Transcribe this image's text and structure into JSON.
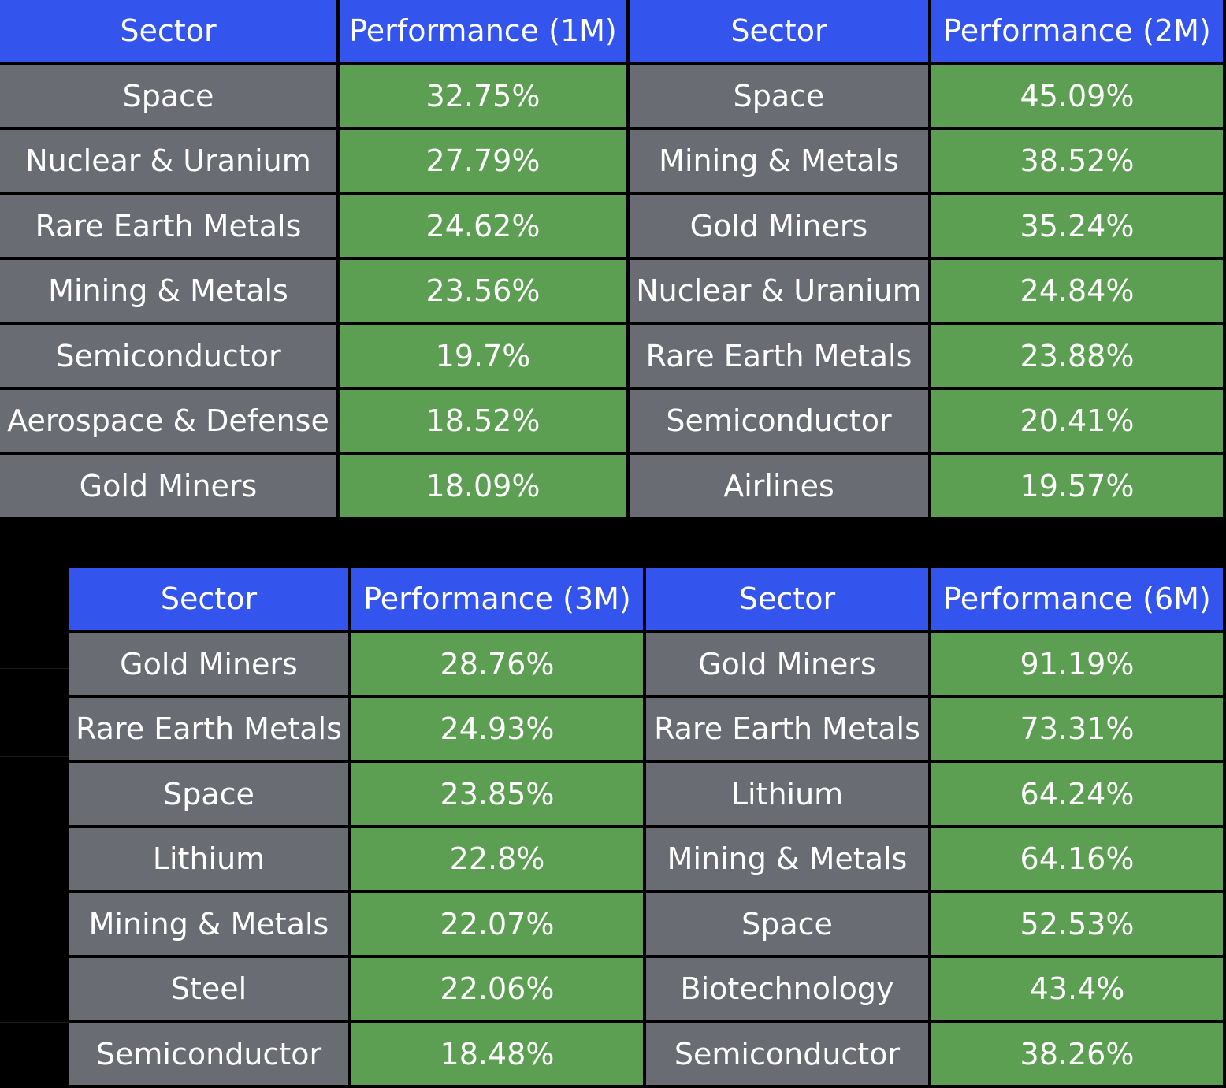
{
  "colors": {
    "header_blue": "#3355ee",
    "sector_gray": "#6a6c74",
    "performance_green": "#5c9f53",
    "background": "#000000"
  },
  "tables": {
    "m1": {
      "sector_header": "Sector",
      "perf_header": "Performance (1M)",
      "rows": [
        {
          "sector": "Space",
          "perf": "32.75%"
        },
        {
          "sector": "Nuclear & Uranium",
          "perf": "27.79%"
        },
        {
          "sector": "Rare Earth Metals",
          "perf": "24.62%"
        },
        {
          "sector": "Mining & Metals",
          "perf": "23.56%"
        },
        {
          "sector": "Semiconductor",
          "perf": "19.7%"
        },
        {
          "sector": "Aerospace & Defense",
          "perf": "18.52%"
        },
        {
          "sector": "Gold Miners",
          "perf": "18.09%"
        }
      ]
    },
    "m2": {
      "sector_header": "Sector",
      "perf_header": "Performance (2M)",
      "rows": [
        {
          "sector": "Space",
          "perf": "45.09%"
        },
        {
          "sector": "Mining & Metals",
          "perf": "38.52%"
        },
        {
          "sector": "Gold Miners",
          "perf": "35.24%"
        },
        {
          "sector": "Nuclear & Uranium",
          "perf": "24.84%"
        },
        {
          "sector": "Rare Earth Metals",
          "perf": "23.88%"
        },
        {
          "sector": "Semiconductor",
          "perf": "20.41%"
        },
        {
          "sector": "Airlines",
          "perf": "19.57%"
        }
      ]
    },
    "m3": {
      "sector_header": "Sector",
      "perf_header": "Performance (3M)",
      "rows": [
        {
          "sector": "Gold Miners",
          "perf": "28.76%"
        },
        {
          "sector": "Rare Earth Metals",
          "perf": "24.93%"
        },
        {
          "sector": "Space",
          "perf": "23.85%"
        },
        {
          "sector": "Lithium",
          "perf": "22.8%"
        },
        {
          "sector": "Mining & Metals",
          "perf": "22.07%"
        },
        {
          "sector": "Steel",
          "perf": "22.06%"
        },
        {
          "sector": "Semiconductor",
          "perf": "18.48%"
        }
      ]
    },
    "m6": {
      "sector_header": "Sector",
      "perf_header": "Performance (6M)",
      "rows": [
        {
          "sector": "Gold Miners",
          "perf": "91.19%"
        },
        {
          "sector": "Rare Earth Metals",
          "perf": "73.31%"
        },
        {
          "sector": "Lithium",
          "perf": "64.24%"
        },
        {
          "sector": "Mining & Metals",
          "perf": "64.16%"
        },
        {
          "sector": "Space",
          "perf": "52.53%"
        },
        {
          "sector": "Biotechnology",
          "perf": "43.4%"
        },
        {
          "sector": "Semiconductor",
          "perf": "38.26%"
        }
      ]
    }
  }
}
